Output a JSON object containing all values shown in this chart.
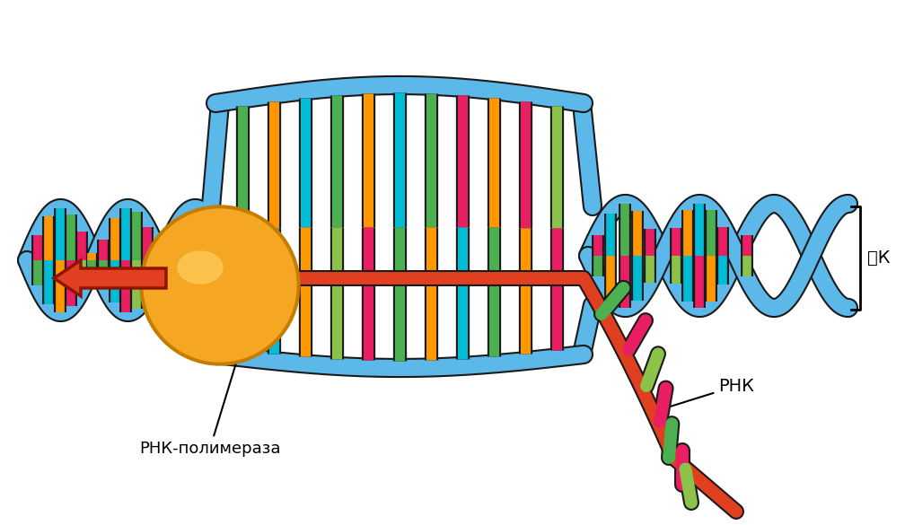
{
  "background_color": "#ffffff",
  "dna_color": "#5BB8E8",
  "dna_outline": "#1a1a1a",
  "rna_pol_color": "#F5A623",
  "rna_pol_outline": "#c47d00",
  "mrna_color": "#E04020",
  "mrna_outline": "#8B1500",
  "arrow_color": "#E04020",
  "base_colors": {
    "green": "#4CAF50",
    "orange": "#FF9800",
    "pink": "#E91E63",
    "cyan": "#00BCD4",
    "yellow": "#FFEB3B",
    "lime": "#8BC34A"
  },
  "label_dnk": "䅍К",
  "label_rnk": "РНК",
  "label_pol": "РНК-полимераза",
  "label_fontsize": 13
}
